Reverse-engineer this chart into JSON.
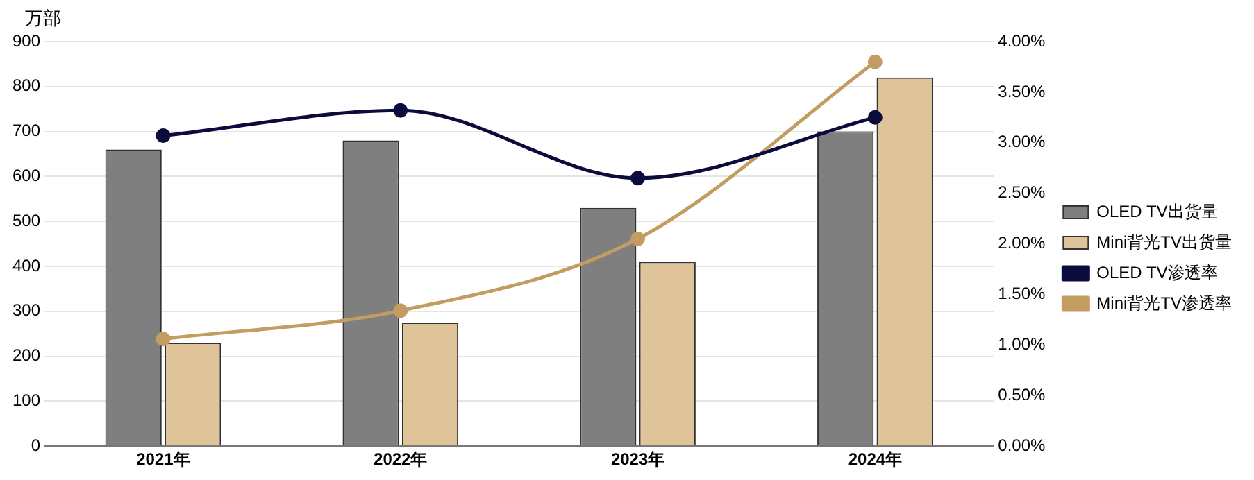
{
  "chart_data": {
    "type": "bar",
    "ylabel": "万部",
    "categories": [
      "2021年",
      "2022年",
      "2023年",
      "2024年"
    ],
    "series": [
      {
        "name": "OLED TV出货量",
        "color": "#7f7f7f",
        "values": [
          660,
          680,
          530,
          700
        ]
      },
      {
        "name": "Mini背光TV出货量",
        "color": "#dfc49a",
        "values": [
          230,
          275,
          410,
          820
        ]
      },
      {
        "name": "OLED TV渗透率",
        "type": "line",
        "axis": "y2",
        "color": "#0c0c3c",
        "values": [
          3.07,
          3.32,
          2.65,
          3.25
        ]
      },
      {
        "name": "Mini背光TV渗透率",
        "type": "line",
        "axis": "y2",
        "color": "#c29c60",
        "values": [
          1.06,
          1.34,
          2.05,
          3.8
        ]
      }
    ],
    "ylim": [
      0,
      900
    ],
    "yticks": [
      0,
      100,
      200,
      300,
      400,
      500,
      600,
      700,
      800,
      900
    ],
    "y2lim": [
      0,
      4
    ],
    "y2ticks": [
      {
        "value": 0,
        "label": "0.00%"
      },
      {
        "value": 0.5,
        "label": "0.50%"
      },
      {
        "value": 1,
        "label": "1.00%"
      },
      {
        "value": 1.5,
        "label": "1.50%"
      },
      {
        "value": 2,
        "label": "2.00%"
      },
      {
        "value": 2.5,
        "label": "2.50%"
      },
      {
        "value": 3,
        "label": "3.00%"
      },
      {
        "value": 3.5,
        "label": "3.50%"
      },
      {
        "value": 4,
        "label": "4.00%"
      }
    ],
    "grid": "y",
    "legend": "right",
    "marker": "circle"
  }
}
